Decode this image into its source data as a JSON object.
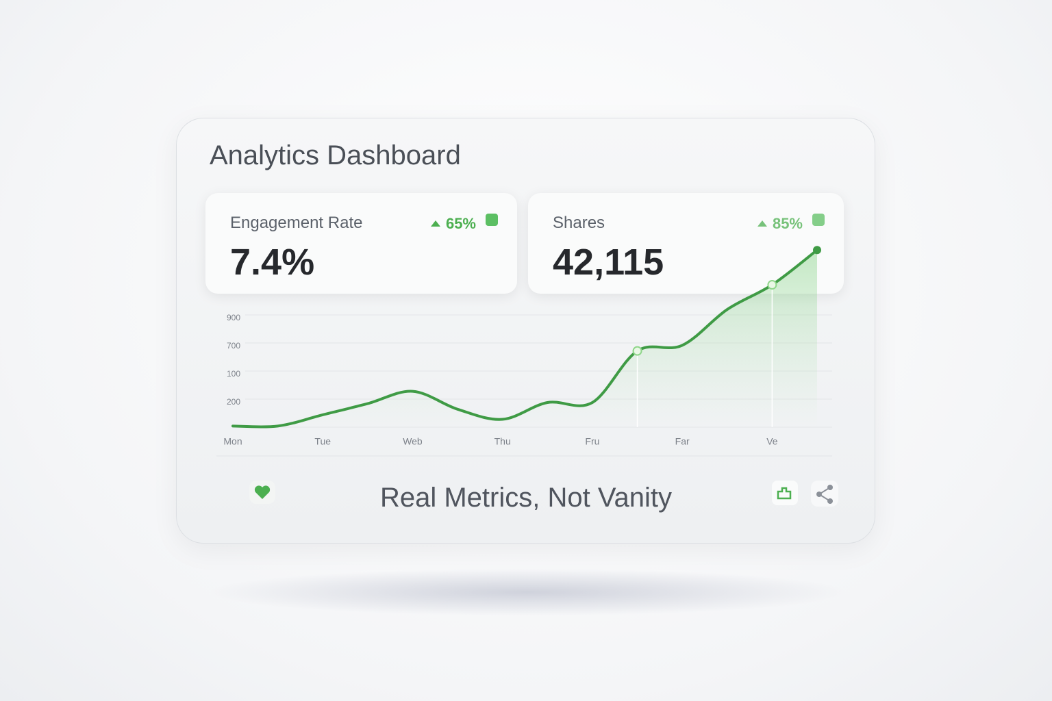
{
  "header": {
    "title": "Analytics Dashboard"
  },
  "metrics": [
    {
      "label": "Engagement Rate",
      "value": "7.4%",
      "change": "65%"
    },
    {
      "label": "Shares",
      "value": "42,115",
      "change": "85%"
    }
  ],
  "chart_data": {
    "type": "line",
    "y_labels": [
      "900",
      "700",
      "100",
      "200"
    ],
    "categories": [
      "Mon",
      null,
      "Tue",
      null,
      "Web",
      null,
      "Thu",
      null,
      "Fru",
      null,
      "Far",
      null,
      "Ve",
      null
    ],
    "series": [
      {
        "color": "#3f9b45",
        "values": [
          1,
          1,
          11,
          21,
          32,
          16,
          7,
          22,
          22,
          68,
          73,
          105,
          127,
          158
        ]
      }
    ],
    "ylim": [
      0,
      160
    ]
  },
  "footer": {
    "tagline": "Real Metrics, Not Vanity"
  }
}
